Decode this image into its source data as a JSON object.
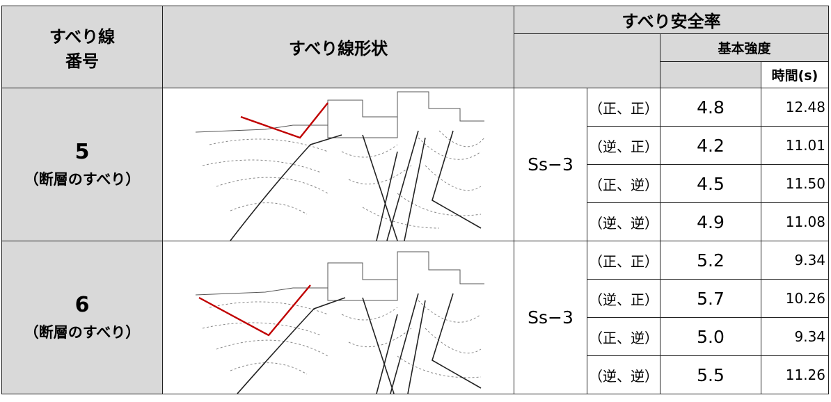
{
  "table": {
    "header": {
      "line_no": [
        "すべり線",
        "番号"
      ],
      "shape": "すべり線形状",
      "safety_factor": "すべり安全率",
      "basic_strength": "基本強度",
      "time": "時間(s)"
    },
    "rows": [
      {
        "line_no": "5",
        "note": "（断層のすべり）",
        "ground_motion": "Ss−3",
        "cases": [
          {
            "phase": "（正、正）",
            "factor": "4.8",
            "time": "12.48"
          },
          {
            "phase": "（逆、正）",
            "factor": "4.2",
            "time": "11.01"
          },
          {
            "phase": "（正、逆）",
            "factor": "4.5",
            "time": "11.50"
          },
          {
            "phase": "（逆、逆）",
            "factor": "4.9",
            "time": "11.08"
          }
        ]
      },
      {
        "line_no": "6",
        "note": "（断層のすべり）",
        "ground_motion": "Ss−3",
        "cases": [
          {
            "phase": "（正、正）",
            "factor": "5.2",
            "time": "9.34"
          },
          {
            "phase": "（逆、正）",
            "factor": "5.7",
            "time": "10.26"
          },
          {
            "phase": "（正、逆）",
            "factor": "5.0",
            "time": "9.34"
          },
          {
            "phase": "（逆、逆）",
            "factor": "5.5",
            "time": "11.26"
          }
        ]
      }
    ]
  }
}
